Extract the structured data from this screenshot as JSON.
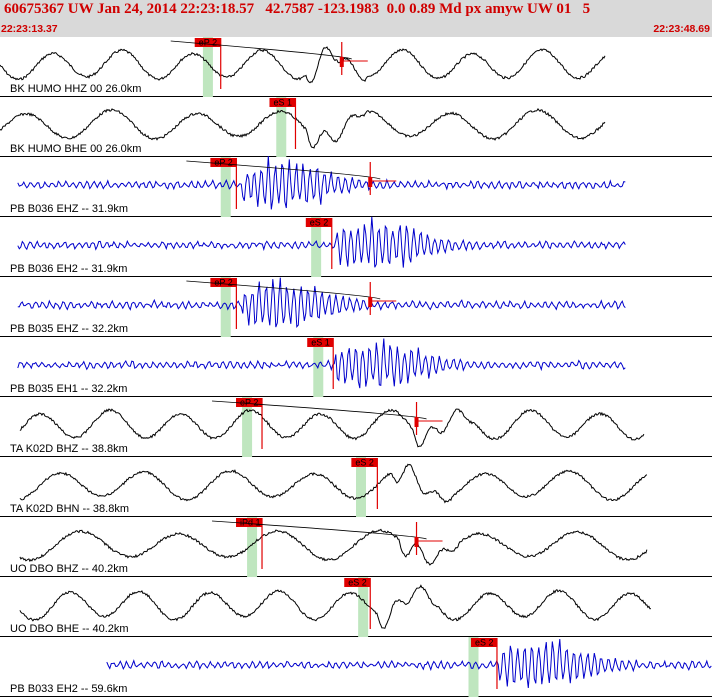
{
  "header": {
    "title": "60675367 UW Jan 24, 2014 22:23:18.57   42.7587 -123.1983  0.0 0.89 Md px amyw UW 01   5",
    "time_start": "22:23:13.37",
    "time_end": "22:23:48.69"
  },
  "colors": {
    "header_bg": "#d9d9d9",
    "header_text": "#d00000",
    "pick_marker": "#e00000",
    "window_band": "#bfe6bf",
    "trace_short_period": "#0000cc",
    "trace_broadband": "#000000"
  },
  "chart_data": {
    "type": "line",
    "title": "60675367 UW Jan 24, 2014 22:23:18.57   42.7587 -123.1983  0.0 0.89 Md px amyw UW 01   5",
    "x_range": [
      "22:23:13.37",
      "22:23:48.69"
    ],
    "series": [
      {
        "name": "BK HUMO HHZ 00 26.0km",
        "color": "#000000",
        "kind": "broadband",
        "start_frac": 0.0,
        "end_frac": 0.85,
        "pick": {
          "label": "eP 2",
          "at": 0.31
        },
        "band": 0.285,
        "event_frac": 0.43,
        "amp_mark": 0.48
      },
      {
        "name": "BK HUMO BHE 00 26.0km",
        "color": "#000000",
        "kind": "broadband",
        "start_frac": 0.0,
        "end_frac": 0.85,
        "pick": {
          "label": "eS 1",
          "at": 0.415
        },
        "band": 0.388,
        "event_frac": 0.43,
        "amp_mark": null
      },
      {
        "name": "PB B036 EHZ -- 31.9km",
        "color": "#0000cc",
        "kind": "short",
        "start_frac": 0.025,
        "end_frac": 0.88,
        "pick": {
          "label": "eP 2",
          "at": 0.332
        },
        "band": 0.31,
        "event_frac": 0.34,
        "amp_mark": 0.52
      },
      {
        "name": "PB B036 EH2 -- 31.9km",
        "color": "#0000cc",
        "kind": "short",
        "start_frac": 0.025,
        "end_frac": 0.88,
        "pick": {
          "label": "eS 2",
          "at": 0.466
        },
        "band": 0.437,
        "event_frac": 0.47,
        "amp_mark": null
      },
      {
        "name": "PB B035 EHZ -- 32.2km",
        "color": "#0000cc",
        "kind": "short",
        "start_frac": 0.025,
        "end_frac": 0.88,
        "pick": {
          "label": "eP 2",
          "at": 0.332
        },
        "band": 0.31,
        "event_frac": 0.34,
        "amp_mark": 0.52
      },
      {
        "name": "PB B035 EH1 -- 32.2km",
        "color": "#0000cc",
        "kind": "short",
        "start_frac": 0.025,
        "end_frac": 0.88,
        "pick": {
          "label": "eS 1",
          "at": 0.468
        },
        "band": 0.44,
        "event_frac": 0.47,
        "amp_mark": null
      },
      {
        "name": "TA K02D BHZ -- 38.8km",
        "color": "#000000",
        "kind": "broadband",
        "start_frac": 0.028,
        "end_frac": 0.905,
        "pick": {
          "label": "eP 2",
          "at": 0.368
        },
        "band": 0.34,
        "event_frac": 0.58,
        "amp_mark": 0.585
      },
      {
        "name": "TA K02D BHN -- 38.8km",
        "color": "#000000",
        "kind": "broadband",
        "start_frac": 0.028,
        "end_frac": 0.91,
        "pick": {
          "label": "eS 2",
          "at": 0.53
        },
        "band": 0.5,
        "event_frac": 0.55,
        "amp_mark": null
      },
      {
        "name": "UO DBO BHZ -- 40.2km",
        "color": "#000000",
        "kind": "broadband",
        "start_frac": 0.028,
        "end_frac": 0.91,
        "pick": {
          "label": "iPd 1",
          "at": 0.368
        },
        "band": 0.347,
        "event_frac": 0.56,
        "amp_mark": 0.585
      },
      {
        "name": "UO DBO BHE -- 40.2km",
        "color": "#000000",
        "kind": "broadband",
        "start_frac": 0.028,
        "end_frac": 0.915,
        "pick": {
          "label": "eS 2",
          "at": 0.52
        },
        "band": 0.503,
        "event_frac": 0.53,
        "amp_mark": null
      },
      {
        "name": "PB B033 EH2 -- 59.6km",
        "color": "#0000cc",
        "kind": "short",
        "start_frac": 0.15,
        "end_frac": 1.0,
        "pick": {
          "label": "eS 2",
          "at": 0.698
        },
        "band": 0.658,
        "event_frac": 0.7,
        "amp_mark": null
      }
    ]
  }
}
